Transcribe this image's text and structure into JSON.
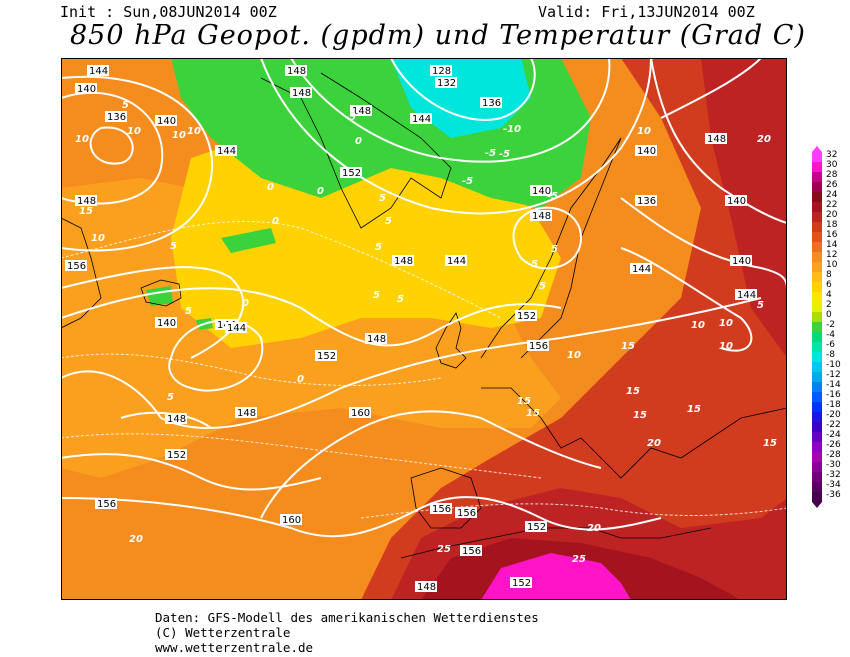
{
  "header": {
    "init": "Init : Sun,08JUN2014 00Z",
    "valid": "Valid: Fri,13JUN2014 00Z",
    "title": "850 hPa Geopot. (gpdm) und Temperatur (Grad C)"
  },
  "footer": {
    "line1": "Daten: GFS-Modell des amerikanischen Wetterdienstes",
    "line2": "(C) Wetterzentrale",
    "line3": "www.wetterzentrale.de"
  },
  "legend": {
    "levels": [
      {
        "label": "32",
        "color": "#ff3cff"
      },
      {
        "label": "30",
        "color": "#ff14c8"
      },
      {
        "label": "28",
        "color": "#c8008c"
      },
      {
        "label": "26",
        "color": "#a00050"
      },
      {
        "label": "24",
        "color": "#8c0a1e"
      },
      {
        "label": "22",
        "color": "#a5141e"
      },
      {
        "label": "20",
        "color": "#be2323"
      },
      {
        "label": "18",
        "color": "#d23c1e"
      },
      {
        "label": "16",
        "color": "#e6501e"
      },
      {
        "label": "14",
        "color": "#f06e1e"
      },
      {
        "label": "12",
        "color": "#f58c1e"
      },
      {
        "label": "10",
        "color": "#faa01e"
      },
      {
        "label": "8",
        "color": "#ffbe14"
      },
      {
        "label": "6",
        "color": "#ffd200"
      },
      {
        "label": "4",
        "color": "#ffe600"
      },
      {
        "label": "2",
        "color": "#e6f000"
      },
      {
        "label": "0",
        "color": "#aadc00"
      },
      {
        "label": "-2",
        "color": "#3cd23c"
      },
      {
        "label": "-4",
        "color": "#00dc78"
      },
      {
        "label": "-6",
        "color": "#00e6aa"
      },
      {
        "label": "-8",
        "color": "#00e6dc"
      },
      {
        "label": "-10",
        "color": "#00c8f0"
      },
      {
        "label": "-12",
        "color": "#00aaf0"
      },
      {
        "label": "-14",
        "color": "#0082f0"
      },
      {
        "label": "-16",
        "color": "#005aff"
      },
      {
        "label": "-18",
        "color": "#0032ff"
      },
      {
        "label": "-20",
        "color": "#1e14e6"
      },
      {
        "label": "-22",
        "color": "#3c00c8"
      },
      {
        "label": "-24",
        "color": "#6400c8"
      },
      {
        "label": "-26",
        "color": "#8c00c8"
      },
      {
        "label": "-28",
        "color": "#aa00b4"
      },
      {
        "label": "-30",
        "color": "#8c0096"
      },
      {
        "label": "-32",
        "color": "#6e0078"
      },
      {
        "label": "-34",
        "color": "#5a0064"
      },
      {
        "label": "-36",
        "color": "#46004b"
      }
    ]
  },
  "map": {
    "background_color": "#f58c1e",
    "geopotential_labels": [
      "144",
      "140",
      "136",
      "140",
      "144",
      "148",
      "148",
      "128",
      "132",
      "136",
      "148",
      "144",
      "152",
      "148",
      "156",
      "148",
      "144",
      "140",
      "140",
      "148",
      "144",
      "152",
      "156",
      "148",
      "148",
      "152",
      "160",
      "152",
      "148",
      "156",
      "160",
      "156",
      "156",
      "152",
      "156",
      "152",
      "148",
      "144",
      "140",
      "136",
      "140",
      "144",
      "140",
      "148",
      "144"
    ],
    "temperature_labels": [
      "10",
      "5",
      "10",
      "10",
      "10",
      "15",
      "10",
      "5",
      "0",
      "0",
      "0",
      "0",
      "-5",
      "0",
      "-5",
      "-5",
      "-10",
      "-5",
      "-5",
      "5",
      "5",
      "5",
      "5",
      "5",
      "5",
      "5",
      "0",
      "5",
      "5",
      "5",
      "10",
      "10",
      "15",
      "15",
      "15",
      "15",
      "15",
      "10",
      "10",
      "10",
      "5",
      "20",
      "20",
      "25",
      "25",
      "15",
      "15",
      "20",
      "20"
    ]
  }
}
